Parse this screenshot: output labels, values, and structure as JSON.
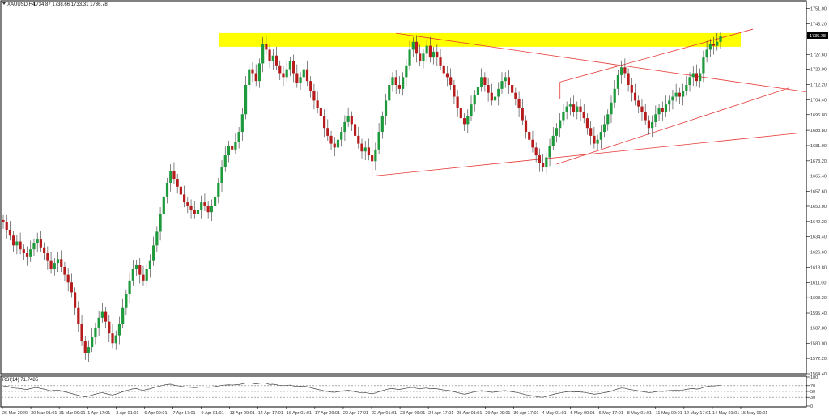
{
  "chart_data": [
    {
      "type": "candlestick",
      "symbol_header": "XAUUSD,H4",
      "ohlc_header": "1734.87 1738.66 1733.31 1736.78",
      "last_price_label": "1736.78",
      "y_ticks": [
        "1751.00",
        "1743.20",
        "1736.78",
        "1727.60",
        "1720.00",
        "1712.20",
        "1704.40",
        "1696.80",
        "1688.80",
        "1681.00",
        "1673.20",
        "1665.40",
        "1657.60",
        "1650.00",
        "1642.20",
        "1634.40",
        "1626.60",
        "1618.80",
        "1611.00",
        "1603.20",
        "1595.40",
        "1587.80",
        "1580.00",
        "1572.20",
        "1564.40"
      ],
      "x_ticks": [
        "26 Mar 2020",
        "30 Mar 01:01",
        "31 Mar 09:01",
        "1 Apr 17:01",
        "3 Apr 01:01",
        "6 Apr 09:01",
        "7 Apr 17:01",
        "9 Apr 01:01",
        "13 Apr 09:01",
        "14 Apr 17:01",
        "16 Apr 01:01",
        "17 Apr 09:01",
        "20 Apr 17:01",
        "22 Apr 01:01",
        "23 Apr 09:01",
        "24 Apr 17:01",
        "28 Apr 01:01",
        "29 Apr 09:01",
        "30 Apr 17:01",
        "4 May 01:01",
        "5 May 09:01",
        "6 May 17:01",
        "8 May 01:01",
        "11 May 09:01",
        "12 May 17:01",
        "14 May 01:01",
        "15 May 09:01"
      ],
      "ylim": [
        1564.4,
        1755
      ],
      "resistance_zone": [
        1731.5,
        1738.5
      ],
      "colors": {
        "bull": "#1e9a3c",
        "bear": "#b71c1c",
        "zone": "#ffff00",
        "trendline": "#e53935"
      },
      "closes": [
        1642,
        1638,
        1635,
        1630,
        1632,
        1628,
        1626,
        1624,
        1628,
        1631,
        1633,
        1629,
        1626,
        1622,
        1618,
        1621,
        1623,
        1619,
        1615,
        1611,
        1606,
        1598,
        1590,
        1581,
        1575,
        1578,
        1583,
        1588,
        1593,
        1596,
        1591,
        1585,
        1580,
        1584,
        1590,
        1598,
        1605,
        1612,
        1618,
        1620,
        1615,
        1612,
        1618,
        1622,
        1630,
        1637,
        1646,
        1655,
        1662,
        1668,
        1664,
        1660,
        1656,
        1652,
        1650,
        1648,
        1646,
        1648,
        1652,
        1650,
        1647,
        1650,
        1655,
        1662,
        1670,
        1676,
        1681,
        1679,
        1683,
        1688,
        1697,
        1712,
        1720,
        1718,
        1714,
        1723,
        1733,
        1730,
        1724,
        1727,
        1722,
        1718,
        1716,
        1720,
        1724,
        1718,
        1713,
        1716,
        1720,
        1714,
        1709,
        1704,
        1700,
        1696,
        1690,
        1686,
        1682,
        1680,
        1684,
        1688,
        1693,
        1696,
        1692,
        1686,
        1682,
        1678,
        1680,
        1676,
        1673,
        1679,
        1688,
        1696,
        1704,
        1712,
        1716,
        1712,
        1710,
        1716,
        1722,
        1730,
        1734,
        1728,
        1724,
        1728,
        1732,
        1726,
        1729,
        1726,
        1722,
        1718,
        1716,
        1712,
        1706,
        1700,
        1695,
        1692,
        1696,
        1702,
        1707,
        1711,
        1716,
        1712,
        1708,
        1704,
        1706,
        1710,
        1714,
        1716,
        1712,
        1708,
        1705,
        1700,
        1694,
        1688,
        1684,
        1680,
        1676,
        1672,
        1670,
        1675,
        1681,
        1686,
        1690,
        1694,
        1698,
        1701,
        1702,
        1698,
        1701,
        1698,
        1695,
        1690,
        1686,
        1682,
        1684,
        1688,
        1692,
        1697,
        1703,
        1710,
        1717,
        1721,
        1718,
        1712,
        1708,
        1704,
        1701,
        1698,
        1694,
        1690,
        1693,
        1697,
        1700,
        1698,
        1702,
        1704,
        1706,
        1708,
        1706,
        1709,
        1712,
        1716,
        1718,
        1714,
        1718,
        1726,
        1730,
        1733,
        1732,
        1734,
        1736.78
      ]
    },
    {
      "type": "line",
      "indicator_header": "RSI(14) 71.7485",
      "ylim": [
        0,
        100
      ],
      "y_ticks": [
        "100",
        "70",
        "50",
        "30",
        "0"
      ],
      "levels": [
        70,
        50,
        30
      ],
      "values": [
        69,
        68,
        65,
        62,
        61,
        60,
        58,
        57,
        60,
        62,
        63,
        60,
        58,
        55,
        52,
        54,
        55,
        52,
        49,
        46,
        43,
        40,
        37,
        34,
        32,
        34,
        38,
        41,
        44,
        46,
        43,
        40,
        38,
        41,
        45,
        49,
        53,
        56,
        59,
        60,
        56,
        54,
        57,
        59,
        63,
        66,
        69,
        72,
        74,
        75,
        72,
        70,
        68,
        66,
        65,
        64,
        63,
        64,
        66,
        65,
        64,
        65,
        67,
        69,
        71,
        72,
        73,
        72,
        73,
        74,
        76,
        79,
        80,
        78,
        76,
        78,
        80,
        78,
        74,
        75,
        73,
        71,
        70,
        71,
        72,
        69,
        67,
        68,
        69,
        66,
        63,
        60,
        57,
        55,
        52,
        50,
        48,
        47,
        49,
        51,
        53,
        54,
        52,
        49,
        47,
        45,
        46,
        44,
        42,
        45,
        49,
        53,
        56,
        59,
        60,
        58,
        57,
        59,
        61,
        63,
        64,
        61,
        59,
        61,
        62,
        59,
        60,
        59,
        57,
        55,
        54,
        52,
        49,
        46,
        43,
        41,
        43,
        46,
        49,
        51,
        53,
        51,
        49,
        47,
        48,
        50,
        52,
        53,
        51,
        49,
        47,
        45,
        42,
        39,
        37,
        35,
        33,
        31,
        30,
        33,
        37,
        40,
        43,
        45,
        47,
        49,
        50,
        48,
        49,
        48,
        47,
        45,
        43,
        41,
        42,
        44,
        46,
        48,
        51,
        55,
        59,
        62,
        61,
        58,
        56,
        54,
        52,
        50,
        48,
        46,
        47,
        49,
        51,
        50,
        52,
        53,
        54,
        55,
        54,
        55,
        57,
        59,
        60,
        58,
        60,
        64,
        67,
        69,
        69,
        70,
        71.7
      ]
    }
  ]
}
